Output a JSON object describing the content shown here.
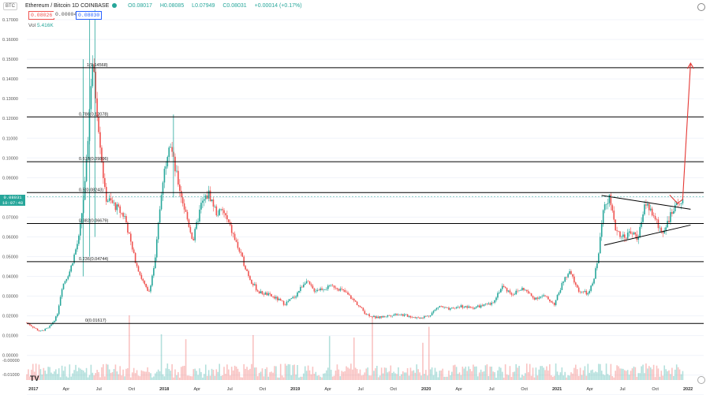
{
  "header": {
    "pair": "Ethereum / Bitcoin",
    "interval": "1D",
    "exchange": "COINBASE",
    "open": "O0.08017",
    "high": "H0.08085",
    "low": "L0.07949",
    "close": "C0.08031",
    "change": "+0.00014 (+0.17%)",
    "symbol_badge": "BTC",
    "bid": "0.08026",
    "spread": "0.00004",
    "ask": "0.08030",
    "volume_label": "Vol",
    "volume_value": "5.416K",
    "last_price": "0.08031",
    "countdown": "10:07:48"
  },
  "colors": {
    "up": "#26a69a",
    "down": "#ef5350",
    "fib_line": "#000000",
    "target_arrow": "#e53935",
    "tag_bg": "#26a69a"
  },
  "chart_data": {
    "type": "candlestick",
    "title": "Ethereum / Bitcoin · 1D · COINBASE",
    "ylim": [
      -0.0125,
      0.18
    ],
    "y_ticks": [
      "0.17000",
      "0.16000",
      "0.15000",
      "0.14000",
      "0.13000",
      "0.12000",
      "0.11000",
      "0.10000",
      "0.09000",
      "0.08000",
      "0.07000",
      "0.06000",
      "0.05000",
      "0.04000",
      "0.03000",
      "0.02000",
      "0.01000",
      "0.00000",
      "-0.00000",
      "-0.01000"
    ],
    "x_ticks": [
      "2017",
      "Apr",
      "Jul",
      "Oct",
      "2018",
      "Apr",
      "Jul",
      "Oct",
      "2019",
      "Apr",
      "Jul",
      "Oct",
      "2020",
      "Apr",
      "Jul",
      "Oct",
      "2021",
      "Apr",
      "Jul",
      "Oct",
      "2022"
    ],
    "fib_levels": [
      {
        "label": "1(0.14568)",
        "value": 0.14568
      },
      {
        "label": "0.786(0.12078)",
        "value": 0.12078
      },
      {
        "label": "0.618(0.09806)",
        "value": 0.09806
      },
      {
        "label": "0.5(0.08243)",
        "value": 0.08243
      },
      {
        "label": "0.382(0.06679)",
        "value": 0.06679
      },
      {
        "label": "0.236(0.04744)",
        "value": 0.04744
      },
      {
        "label": "0(0.01617)",
        "value": 0.01617
      }
    ],
    "price_path": [
      [
        2016.95,
        0.0165
      ],
      [
        2017.05,
        0.012
      ],
      [
        2017.12,
        0.014
      ],
      [
        2017.18,
        0.02
      ],
      [
        2017.22,
        0.035
      ],
      [
        2017.28,
        0.043
      ],
      [
        2017.35,
        0.06
      ],
      [
        2017.4,
        0.09
      ],
      [
        2017.45,
        0.15
      ],
      [
        2017.5,
        0.115
      ],
      [
        2017.55,
        0.08
      ],
      [
        2017.62,
        0.076
      ],
      [
        2017.7,
        0.07
      ],
      [
        2017.76,
        0.052
      ],
      [
        2017.82,
        0.04
      ],
      [
        2017.88,
        0.031
      ],
      [
        2017.93,
        0.048
      ],
      [
        2017.98,
        0.085
      ],
      [
        2018.04,
        0.11
      ],
      [
        2018.08,
        0.095
      ],
      [
        2018.14,
        0.078
      ],
      [
        2018.22,
        0.058
      ],
      [
        2018.28,
        0.076
      ],
      [
        2018.34,
        0.082
      ],
      [
        2018.4,
        0.072
      ],
      [
        2018.45,
        0.073
      ],
      [
        2018.52,
        0.062
      ],
      [
        2018.6,
        0.048
      ],
      [
        2018.66,
        0.038
      ],
      [
        2018.72,
        0.032
      ],
      [
        2018.78,
        0.031
      ],
      [
        2018.85,
        0.029
      ],
      [
        2018.92,
        0.026
      ],
      [
        2019.0,
        0.03
      ],
      [
        2019.08,
        0.038
      ],
      [
        2019.14,
        0.033
      ],
      [
        2019.22,
        0.034
      ],
      [
        2019.3,
        0.035
      ],
      [
        2019.38,
        0.032
      ],
      [
        2019.46,
        0.027
      ],
      [
        2019.54,
        0.021
      ],
      [
        2019.62,
        0.019
      ],
      [
        2019.7,
        0.02
      ],
      [
        2019.78,
        0.021
      ],
      [
        2019.86,
        0.02
      ],
      [
        2019.94,
        0.019
      ],
      [
        2020.02,
        0.02
      ],
      [
        2020.1,
        0.025
      ],
      [
        2020.18,
        0.023
      ],
      [
        2020.26,
        0.025
      ],
      [
        2020.34,
        0.024
      ],
      [
        2020.42,
        0.025
      ],
      [
        2020.5,
        0.026
      ],
      [
        2020.58,
        0.035
      ],
      [
        2020.66,
        0.031
      ],
      [
        2020.74,
        0.034
      ],
      [
        2020.82,
        0.029
      ],
      [
        2020.9,
        0.03
      ],
      [
        2020.98,
        0.026
      ],
      [
        2021.05,
        0.038
      ],
      [
        2021.1,
        0.042
      ],
      [
        2021.16,
        0.033
      ],
      [
        2021.24,
        0.031
      ],
      [
        2021.28,
        0.038
      ],
      [
        2021.32,
        0.053
      ],
      [
        2021.36,
        0.078
      ],
      [
        2021.4,
        0.08
      ],
      [
        2021.44,
        0.065
      ],
      [
        2021.5,
        0.06
      ],
      [
        2021.56,
        0.062
      ],
      [
        2021.62,
        0.06
      ],
      [
        2021.68,
        0.078
      ],
      [
        2021.74,
        0.07
      ],
      [
        2021.8,
        0.062
      ],
      [
        2021.86,
        0.07
      ],
      [
        2021.92,
        0.076
      ],
      [
        2021.96,
        0.0803
      ]
    ],
    "triangle_upper": [
      [
        2021.34,
        0.081
      ],
      [
        2022.02,
        0.074
      ]
    ],
    "triangle_lower": [
      [
        2021.36,
        0.0558
      ],
      [
        2022.02,
        0.066
      ]
    ],
    "projection_arrow": [
      [
        2021.86,
        0.0812
      ],
      [
        2021.92,
        0.077
      ],
      [
        2021.96,
        0.079
      ],
      [
        2022.02,
        0.148
      ]
    ]
  }
}
